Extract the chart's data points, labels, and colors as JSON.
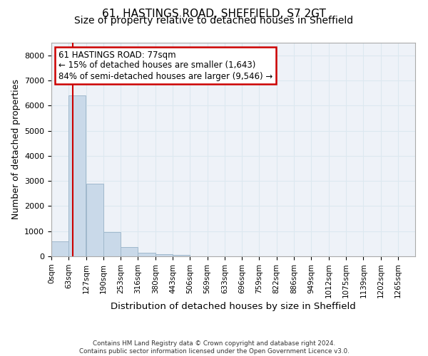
{
  "title": "61, HASTINGS ROAD, SHEFFIELD, S7 2GT",
  "subtitle": "Size of property relative to detached houses in Sheffield",
  "xlabel": "Distribution of detached houses by size in Sheffield",
  "ylabel": "Number of detached properties",
  "footer_line1": "Contains HM Land Registry data © Crown copyright and database right 2024.",
  "footer_line2": "Contains public sector information licensed under the Open Government Licence v3.0.",
  "bin_edges": [
    0,
    63,
    127,
    190,
    253,
    316,
    380,
    443,
    506,
    569,
    633,
    696,
    759,
    822,
    886,
    949,
    1012,
    1075,
    1139,
    1202,
    1265
  ],
  "bar_heights": [
    600,
    6400,
    2900,
    950,
    360,
    140,
    80,
    60,
    0,
    0,
    0,
    0,
    0,
    0,
    0,
    0,
    0,
    0,
    0,
    0
  ],
  "bar_color": "#c9d9e9",
  "bar_edge_color": "#a0b8cc",
  "property_value": 77,
  "annotation_title": "61 HASTINGS ROAD: 77sqm",
  "annotation_line2": "← 15% of detached houses are smaller (1,643)",
  "annotation_line3": "84% of semi-detached houses are larger (9,546) →",
  "annotation_box_color": "#ffffff",
  "annotation_box_edge_color": "#cc0000",
  "vline_color": "#cc0000",
  "ylim": [
    0,
    8500
  ],
  "yticks": [
    0,
    1000,
    2000,
    3000,
    4000,
    5000,
    6000,
    7000,
    8000
  ],
  "grid_color": "#dce8f0",
  "bg_color": "#eef2f8",
  "title_fontsize": 11,
  "subtitle_fontsize": 10,
  "axis_label_fontsize": 9,
  "tick_fontsize": 7.5,
  "annotation_fontsize": 8.5
}
